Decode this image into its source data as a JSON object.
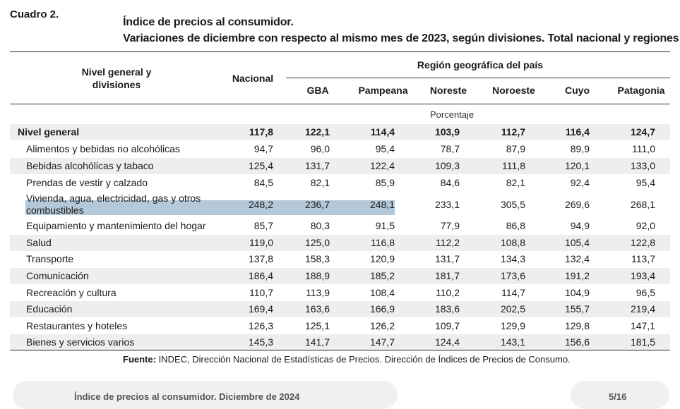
{
  "cuadro": "Cuadro 2.",
  "title_line1": "Índice de precios al consumidor.",
  "title_line2": "Variaciones de diciembre con respecto al mismo mes de 2023, según divisiones. Total nacional y regiones",
  "headers": {
    "division": "Nivel general y divisiones",
    "nacional": "Nacional",
    "region_group": "Región geográfica del país",
    "regions": [
      "GBA",
      "Pampeana",
      "Noreste",
      "Noroeste",
      "Cuyo",
      "Patagonia"
    ]
  },
  "unit": "Porcentaje",
  "rows": [
    {
      "label": "Nivel general",
      "values": [
        "117,8",
        "122,1",
        "114,4",
        "103,9",
        "112,7",
        "116,4",
        "124,7"
      ]
    },
    {
      "label": "Alimentos y bebidas no alcohólicas",
      "values": [
        "94,7",
        "96,0",
        "95,4",
        "78,7",
        "87,9",
        "89,9",
        "111,0"
      ]
    },
    {
      "label": "Bebidas alcohólicas y tabaco",
      "values": [
        "125,4",
        "131,7",
        "122,4",
        "109,3",
        "111,8",
        "120,1",
        "133,0"
      ]
    },
    {
      "label": "Prendas de vestir y calzado",
      "values": [
        "84,5",
        "82,1",
        "85,9",
        "84,6",
        "82,1",
        "92,4",
        "95,4"
      ]
    },
    {
      "label": "Vivienda, agua, electricidad, gas y otros combustibles",
      "values": [
        "248,2",
        "236,7",
        "248,1",
        "233,1",
        "305,5",
        "269,6",
        "268,1"
      ]
    },
    {
      "label": "Equipamiento y mantenimiento del hogar",
      "values": [
        "85,7",
        "80,3",
        "91,5",
        "77,9",
        "86,8",
        "94,9",
        "92,0"
      ]
    },
    {
      "label": "Salud",
      "values": [
        "119,0",
        "125,0",
        "116,8",
        "112,2",
        "108,8",
        "105,4",
        "122,8"
      ]
    },
    {
      "label": "Transporte",
      "values": [
        "137,8",
        "158,3",
        "120,9",
        "131,7",
        "134,3",
        "132,4",
        "113,7"
      ]
    },
    {
      "label": "Comunicación",
      "values": [
        "186,4",
        "188,9",
        "185,2",
        "181,7",
        "173,6",
        "191,2",
        "193,4"
      ]
    },
    {
      "label": "Recreación y cultura",
      "values": [
        "110,7",
        "113,9",
        "108,4",
        "110,2",
        "114,7",
        "104,9",
        "96,5"
      ]
    },
    {
      "label": "Educación",
      "values": [
        "169,4",
        "163,6",
        "166,9",
        "183,6",
        "202,5",
        "155,7",
        "219,4"
      ]
    },
    {
      "label": "Restaurantes y hoteles",
      "values": [
        "126,3",
        "125,1",
        "126,2",
        "109,7",
        "129,9",
        "129,8",
        "147,1"
      ]
    },
    {
      "label": "Bienes y servicios varios",
      "values": [
        "145,3",
        "141,7",
        "147,7",
        "124,4",
        "143,1",
        "156,6",
        "181,5"
      ]
    }
  ],
  "source_label": "Fuente:",
  "source_text": " INDEC, Dirección Nacional de Estadísticas de Precios. Dirección de Índices de Precios de Consumo.",
  "footer_title": "Índice de precios al consumidor. Diciembre de 2024",
  "page_number": "5/16",
  "colors": {
    "highlight": "#b3c8d9",
    "band": "#eeeeee",
    "footer_bg": "#f0f0f0"
  }
}
